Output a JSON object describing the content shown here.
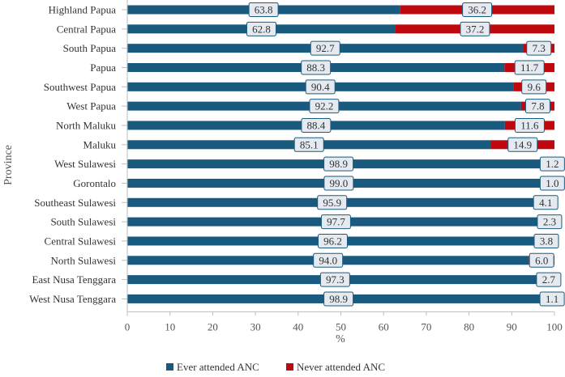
{
  "chart_data": {
    "type": "bar",
    "orientation": "horizontal",
    "stacked": true,
    "title": "",
    "xlabel": "%",
    "ylabel": "Province",
    "xlim": [
      0,
      100
    ],
    "xticks": [
      0,
      10,
      20,
      30,
      40,
      50,
      60,
      70,
      80,
      90,
      100
    ],
    "categories": [
      "Highland Papua",
      "Central Papua",
      "South Papua",
      "Papua",
      "Southwest Papua",
      "West Papua",
      "North Maluku",
      "Maluku",
      "West Sulawesi",
      "Gorontalo",
      "Southeast Sulawesi",
      "South Sulawesi",
      "Central Sulawesi",
      "North Sulawesi",
      "East Nusa Tenggara",
      "West Nusa Tenggara"
    ],
    "series": [
      {
        "name": "Ever attended ANC",
        "color": "#1a5a7e",
        "values": [
          63.8,
          62.8,
          92.7,
          88.3,
          90.4,
          92.2,
          88.4,
          85.1,
          98.9,
          99.0,
          95.9,
          97.7,
          96.2,
          94.0,
          97.3,
          98.9
        ],
        "labels": [
          "63.8",
          "62.8",
          "92.7",
          "88.3",
          "90.4",
          "92.2",
          "88.4",
          "85.1",
          "98.9",
          "99.0",
          "95.9",
          "97.7",
          "96.2",
          "94.0",
          "97.3",
          "98.9"
        ]
      },
      {
        "name": "Never attended ANC",
        "color": "#c0090f",
        "values": [
          36.2,
          37.2,
          7.3,
          11.7,
          9.6,
          7.8,
          11.6,
          14.9,
          1.2,
          1.0,
          4.1,
          2.3,
          3.8,
          6.0,
          2.7,
          1.1
        ],
        "labels": [
          "36.2",
          "37.2",
          "7.3",
          "11.7",
          "9.6",
          "7.8",
          "11.6",
          "14.9",
          "1.2",
          "1.0",
          "4.1",
          "2.3",
          "3.8",
          "6.0",
          "2.7",
          "1.1"
        ]
      }
    ],
    "legend": {
      "position": "bottom",
      "entries": [
        "Ever attended ANC",
        "Never attended ANC"
      ]
    },
    "grid": false
  },
  "colors": {
    "axis": "#bdbdbd",
    "label_bg": "#e4eaef",
    "label_border": "#1a5a7e"
  }
}
